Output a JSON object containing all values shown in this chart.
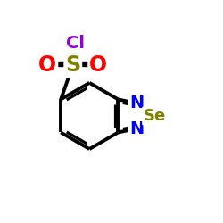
{
  "background_color": "#ffffff",
  "bond_color": "#000000",
  "bond_width": 2.8,
  "atom_colors": {
    "Cl": "#9400d3",
    "S": "#808000",
    "O": "#ff0000",
    "N": "#0000ff",
    "Se": "#808000"
  },
  "atom_fontsizes": {
    "Cl": 14,
    "S": 17,
    "O": 17,
    "N": 14,
    "Se": 13
  },
  "figsize": [
    2.5,
    2.5
  ],
  "dpi": 100
}
